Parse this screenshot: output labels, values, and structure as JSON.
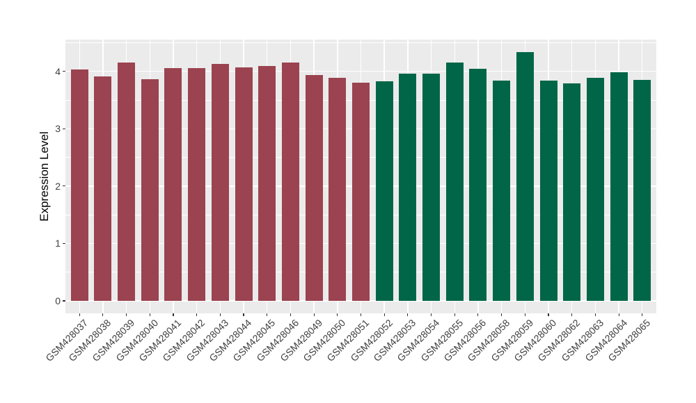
{
  "chart_data": {
    "type": "bar",
    "title": "",
    "xlabel": "",
    "ylabel": "Expression Level",
    "ylim": [
      0,
      4.55
    ],
    "yticks": [
      0,
      1,
      2,
      3,
      4
    ],
    "grid": "horizontal major+minor white lines, vertical major white line per category",
    "legend_position": "none",
    "categories": [
      "GSM428037",
      "GSM428038",
      "GSM428039",
      "GSM428040",
      "GSM428041",
      "GSM428042",
      "GSM428043",
      "GSM428044",
      "GSM428045",
      "GSM428046",
      "GSM428049",
      "GSM428050",
      "GSM428051",
      "GSM428052",
      "GSM428053",
      "GSM428054",
      "GSM428055",
      "GSM428056",
      "GSM428058",
      "GSM428059",
      "GSM428060",
      "GSM428062",
      "GSM428063",
      "GSM428064",
      "GSM428065"
    ],
    "values": [
      4.03,
      3.91,
      4.15,
      3.86,
      4.06,
      4.06,
      4.13,
      4.07,
      4.09,
      4.16,
      3.94,
      3.89,
      3.8,
      3.83,
      3.96,
      3.96,
      4.15,
      4.04,
      3.84,
      4.33,
      3.84,
      3.79,
      3.89,
      3.98,
      3.85
    ],
    "bar_groups": [
      "maroon",
      "maroon",
      "maroon",
      "maroon",
      "maroon",
      "maroon",
      "maroon",
      "maroon",
      "maroon",
      "maroon",
      "maroon",
      "maroon",
      "maroon",
      "green",
      "green",
      "green",
      "green",
      "green",
      "green",
      "green",
      "green",
      "green",
      "green",
      "green",
      "green"
    ],
    "group_colors": {
      "maroon": "#9B4350",
      "green": "#016647"
    },
    "panel_background": "#EBEBEB",
    "grid_color": "#FFFFFF",
    "axis_text_color": "#404040",
    "tick_color": "#333333"
  }
}
